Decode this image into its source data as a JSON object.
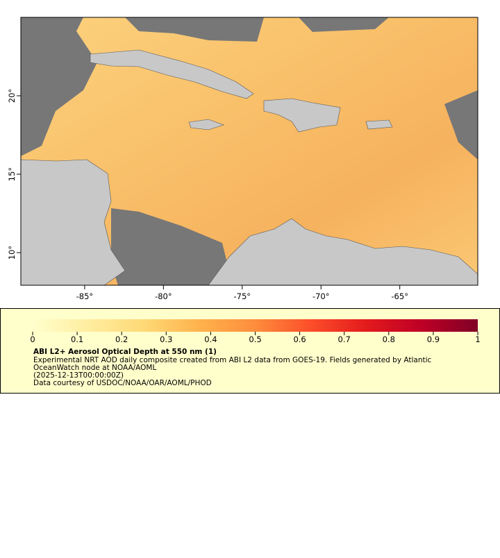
{
  "map": {
    "xlim": [
      -89.05,
      -60.05
    ],
    "ylim": [
      7.92,
      25.0
    ],
    "xticks": [
      {
        "value": -85,
        "label": "-85°"
      },
      {
        "value": -80,
        "label": "-80°"
      },
      {
        "value": -75,
        "label": "-75°"
      },
      {
        "value": -70,
        "label": "-70°"
      },
      {
        "value": -65,
        "label": "-65°"
      }
    ],
    "yticks": [
      {
        "value": 10,
        "label": "10°"
      },
      {
        "value": 15,
        "label": "15°"
      },
      {
        "value": 20,
        "label": "20°"
      }
    ]
  },
  "colorbar": {
    "lim": [
      0,
      1
    ],
    "ticks": [
      0,
      0.1,
      0.2,
      0.3,
      0.4,
      0.5,
      0.6,
      0.7,
      0.8,
      0.9,
      1
    ],
    "colors": [
      "#ffffcc",
      "#ffeda0",
      "#fed976",
      "#feb24c",
      "#fd8d3c",
      "#fc4e2a",
      "#e31a1c",
      "#bd0026",
      "#800026"
    ]
  },
  "legend": {
    "title": "ABI L2+ Aerosol Optical Depth at 550 nm (1)",
    "lines": [
      "Experimental NRT AOD daily composite created from ABI L2 data from GOES-19. Fields generated by Atlantic",
      "OceanWatch node at NOAA/AOML",
      "(2025-12-13T00:00:00Z)",
      "Data courtesy of USDOC/NOAA/OAR/AOML/PHOD"
    ]
  }
}
